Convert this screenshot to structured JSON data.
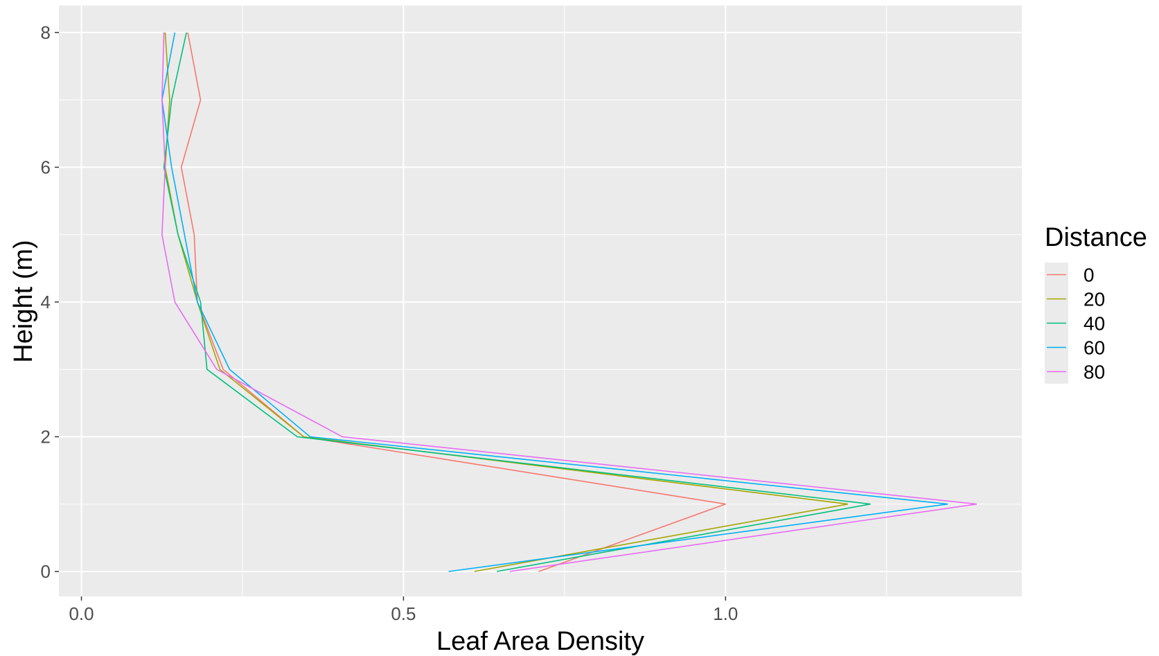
{
  "chart_data": {
    "type": "line",
    "xlabel": "Leaf Area Density",
    "ylabel": "Height (m)",
    "xlim": [
      -0.035,
      1.46
    ],
    "ylim": [
      -0.37,
      8.4
    ],
    "x_ticks": [
      0.0,
      0.5,
      1.0
    ],
    "x_tick_labels": [
      "0.0",
      "0.5",
      "1.0"
    ],
    "y_ticks": [
      0,
      2,
      4,
      6,
      8
    ],
    "y_tick_labels": [
      "0",
      "2",
      "4",
      "6",
      "8"
    ],
    "grid": true,
    "legend": {
      "title": "Distance",
      "position": "right"
    },
    "y": [
      0,
      1,
      2,
      3,
      4,
      5,
      6,
      7,
      8
    ],
    "series": [
      {
        "name": "0",
        "color": "#F8766D",
        "values": [
          0.71,
          1.0,
          0.345,
          0.22,
          0.18,
          0.175,
          0.155,
          0.185,
          0.165
        ]
      },
      {
        "name": "20",
        "color": "#A3A500",
        "values": [
          0.61,
          1.19,
          0.345,
          0.215,
          0.18,
          0.15,
          0.13,
          0.137,
          0.13
        ]
      },
      {
        "name": "40",
        "color": "#00BF7D",
        "values": [
          0.645,
          1.225,
          0.335,
          0.195,
          0.185,
          0.15,
          0.128,
          0.14,
          0.163
        ]
      },
      {
        "name": "60",
        "color": "#00B0F6",
        "values": [
          0.57,
          1.345,
          0.355,
          0.23,
          0.18,
          0.16,
          0.14,
          0.125,
          0.145
        ]
      },
      {
        "name": "80",
        "color": "#E76BF3",
        "values": [
          0.665,
          1.39,
          0.405,
          0.21,
          0.145,
          0.125,
          0.13,
          0.125,
          0.128
        ]
      }
    ]
  }
}
